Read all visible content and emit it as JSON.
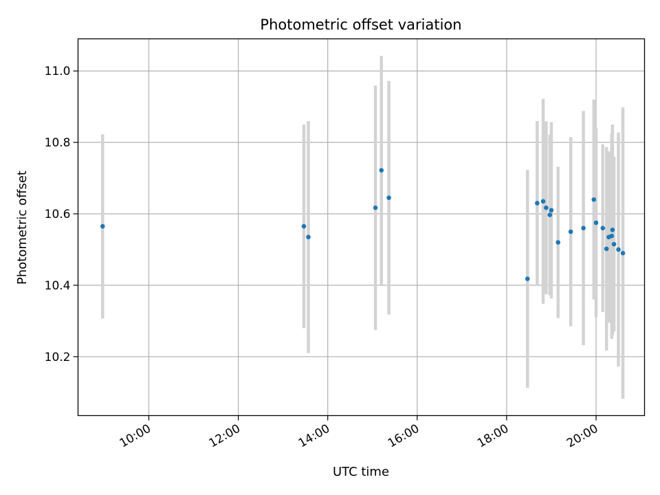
{
  "chart_data": {
    "type": "scatter",
    "title": "Photometric offset variation",
    "xlabel": "UTC time",
    "ylabel": "Photometric offset",
    "x_axis": "time",
    "xlim": [
      "08:25",
      "21:05"
    ],
    "ylim": [
      10.035,
      11.09
    ],
    "xticks": [
      "10:00",
      "12:00",
      "14:00",
      "16:00",
      "18:00",
      "20:00"
    ],
    "yticks": [
      "10.2",
      "10.4",
      "10.6",
      "10.8",
      "11.0"
    ],
    "grid": true,
    "legend": "none",
    "colors": {
      "point": "#1f77b4",
      "errorbar": "#d3d3d3",
      "grid": "#b0b0b0"
    },
    "points": [
      {
        "x": "08:58",
        "y": 10.565,
        "err": 0.258
      },
      {
        "x": "13:28",
        "y": 10.565,
        "err": 0.285
      },
      {
        "x": "13:34",
        "y": 10.535,
        "err": 0.325
      },
      {
        "x": "15:04",
        "y": 10.617,
        "err": 0.342
      },
      {
        "x": "15:12",
        "y": 10.722,
        "err": 0.32
      },
      {
        "x": "15:22",
        "y": 10.645,
        "err": 0.327
      },
      {
        "x": "18:28",
        "y": 10.418,
        "err": 0.305
      },
      {
        "x": "18:41",
        "y": 10.63,
        "err": 0.23
      },
      {
        "x": "18:49",
        "y": 10.635,
        "err": 0.287
      },
      {
        "x": "18:53",
        "y": 10.617,
        "err": 0.242
      },
      {
        "x": "18:58",
        "y": 10.597,
        "err": 0.225
      },
      {
        "x": "19:00",
        "y": 10.61,
        "err": 0.247
      },
      {
        "x": "19:09",
        "y": 10.52,
        "err": 0.212
      },
      {
        "x": "19:26",
        "y": 10.55,
        "err": 0.265
      },
      {
        "x": "19:43",
        "y": 10.56,
        "err": 0.328
      },
      {
        "x": "19:57",
        "y": 10.64,
        "err": 0.28
      },
      {
        "x": "20:00",
        "y": 10.575,
        "err": 0.265
      },
      {
        "x": "20:09",
        "y": 10.56,
        "err": 0.235
      },
      {
        "x": "20:14",
        "y": 10.502,
        "err": 0.285
      },
      {
        "x": "20:17",
        "y": 10.535,
        "err": 0.24
      },
      {
        "x": "20:21",
        "y": 10.538,
        "err": 0.288
      },
      {
        "x": "20:22",
        "y": 10.555,
        "err": 0.295
      },
      {
        "x": "20:24",
        "y": 10.515,
        "err": 0.245
      },
      {
        "x": "20:30",
        "y": 10.5,
        "err": 0.328
      },
      {
        "x": "20:36",
        "y": 10.49,
        "err": 0.408
      }
    ]
  }
}
